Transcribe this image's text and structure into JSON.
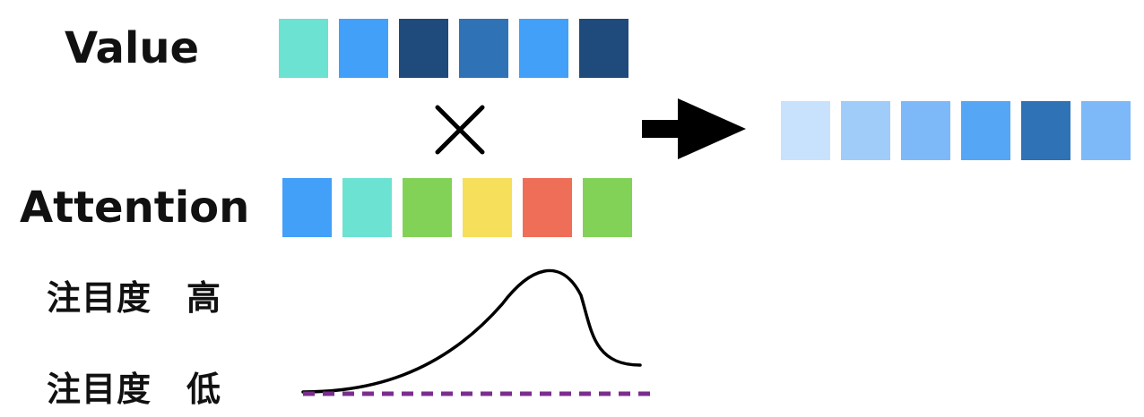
{
  "labels": {
    "value": "Value",
    "attention": "Attention",
    "high": "注目度　高",
    "low": "注目度　低"
  },
  "value_cells": [
    "#6ce2d2",
    "#42a0f8",
    "#1e4a7c",
    "#2f73b6",
    "#42a0f8",
    "#1e4a7c"
  ],
  "attention_cells": [
    "#42a0f8",
    "#6ce2d2",
    "#82d258",
    "#f6df5a",
    "#ef6e58",
    "#82d258"
  ],
  "result_cells": [
    "#c8e2fd",
    "#a0ccfa",
    "#7db9f8",
    "#55a7f6",
    "#2f73b6",
    "#7db9f8"
  ],
  "icons": {
    "times": "times-icon",
    "arrow": "right-arrow-icon"
  },
  "curve": {
    "stroke_color": "#000000",
    "baseline_color": "#7c2d8e",
    "baseline_style": "dashed"
  }
}
